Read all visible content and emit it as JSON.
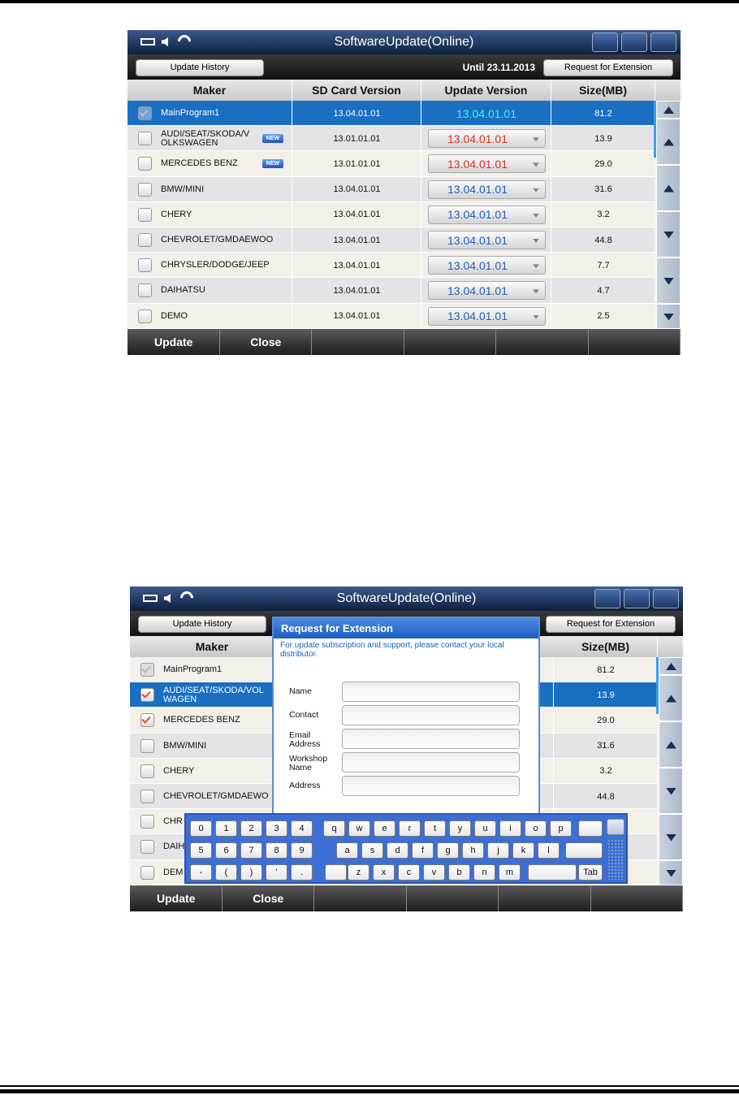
{
  "screens": [
    {
      "title": "SoftwareUpdate(Online)",
      "history_button": "Update History",
      "until": "Until 23.11.2013",
      "extension_button": "Request for Extension",
      "header": {
        "maker": "Maker",
        "sd": "SD Card Version",
        "update": "Update Version",
        "size": "Size(MB)"
      },
      "rows": [
        {
          "maker": "MainProgram1",
          "checked": "disabled",
          "selected": true,
          "sd": "13.04.01.01",
          "update": "13.04.01.01",
          "update_color": "#3ff0ff",
          "size": "81.2"
        },
        {
          "maker": "AUDI/SEAT/SKODA/V\nOLKSWAGEN",
          "badge": "NEW",
          "checked": "off",
          "sd": "13.01.01.01",
          "update": "13.04.01.01",
          "update_color": "#d8321e",
          "size": "13.9"
        },
        {
          "maker": "MERCEDES BENZ",
          "badge": "NEW",
          "checked": "off",
          "sd": "13.01.01.01",
          "update": "13.04.01.01",
          "update_color": "#d8321e",
          "size": "29.0"
        },
        {
          "maker": "BMW/MINI",
          "checked": "off",
          "sd": "13.04.01.01",
          "update": "13.04.01.01",
          "update_color": "#1f5fb8",
          "size": "31.6"
        },
        {
          "maker": "CHERY",
          "checked": "off",
          "sd": "13.04.01.01",
          "update": "13.04.01.01",
          "update_color": "#1f5fb8",
          "size": "3.2"
        },
        {
          "maker": "CHEVROLET/GMDAEWOO",
          "checked": "off",
          "sd": "13.04.01.01",
          "update": "13.04.01.01",
          "update_color": "#1f5fb8",
          "size": "44.8"
        },
        {
          "maker": "CHRYSLER/DODGE/JEEP",
          "checked": "off",
          "sd": "13.04.01.01",
          "update": "13.04.01.01",
          "update_color": "#1f5fb8",
          "size": "7.7"
        },
        {
          "maker": "DAIHATSU",
          "checked": "off",
          "sd": "13.04.01.01",
          "update": "13.04.01.01",
          "update_color": "#1f5fb8",
          "size": "4.7"
        },
        {
          "maker": "DEMO",
          "checked": "off",
          "sd": "13.04.01.01",
          "update": "13.04.01.01",
          "update_color": "#1f5fb8",
          "size": "2.5"
        }
      ],
      "footer": [
        "Update",
        "Close"
      ]
    },
    {
      "title": "SoftwareUpdate(Online)",
      "history_button": "Update History",
      "extension_button": "Request for Extension",
      "header": {
        "maker": "Maker",
        "size": "Size(MB)"
      },
      "rows": [
        {
          "maker": "MainProgram1",
          "checked": "disabled",
          "size": "81.2"
        },
        {
          "maker": "AUDI/SEAT/SKODA/VOL\nWAGEN",
          "checked": "on",
          "selected": true,
          "size": "13.9"
        },
        {
          "maker": "MERCEDES BENZ",
          "checked": "on",
          "size": "29.0"
        },
        {
          "maker": "BMW/MINI",
          "checked": "off",
          "size": "31.6"
        },
        {
          "maker": "CHERY",
          "checked": "off",
          "size": "3.2"
        },
        {
          "maker": "CHEVROLET/GMDAEWO",
          "checked": "off",
          "size": "44.8"
        },
        {
          "maker": "CHR",
          "checked": "off"
        },
        {
          "maker": "DAIH",
          "checked": "off"
        },
        {
          "maker": "DEM",
          "checked": "off"
        }
      ],
      "footer": [
        "Update",
        "Close"
      ],
      "dialog": {
        "title": "Request for Extension",
        "note": "For update subscription and support, please contact your local distributor.",
        "fields": [
          "Name",
          "Contact",
          "Email\nAddress",
          "Workshop\nName",
          "Address"
        ]
      },
      "keyboard": {
        "numpad": [
          [
            "0",
            "1",
            "2",
            "3",
            "4"
          ],
          [
            "5",
            "6",
            "7",
            "8",
            "9"
          ],
          [
            "-",
            "(",
            ")",
            "'",
            "."
          ]
        ],
        "letters": [
          [
            "q",
            "w",
            "e",
            "r",
            "t",
            "y",
            "u",
            "i",
            "o",
            "p"
          ],
          [
            "a",
            "s",
            "d",
            "f",
            "g",
            "h",
            "j",
            "k",
            "l"
          ],
          [
            "z",
            "x",
            "c",
            "v",
            "b",
            "n",
            "m"
          ]
        ],
        "tab": "Tab"
      }
    }
  ]
}
